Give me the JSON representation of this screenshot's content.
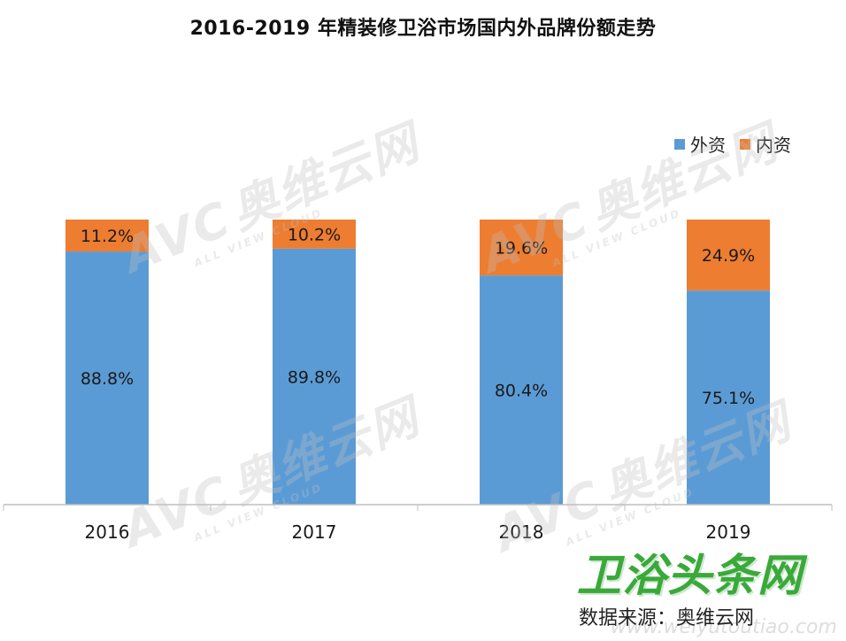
{
  "chart_data": {
    "type": "bar",
    "stacked": true,
    "title": "2016-2019 年精装修卫浴市场国内外品牌份额走势",
    "categories": [
      "2016",
      "2017",
      "2018",
      "2019"
    ],
    "series": [
      {
        "name": "外资",
        "color": "#5b9bd5",
        "values": [
          88.8,
          89.8,
          80.4,
          75.1
        ],
        "labels": [
          "88.8%",
          "89.8%",
          "80.4%",
          "75.1%"
        ]
      },
      {
        "name": "内资",
        "color": "#ed7d31",
        "values": [
          11.2,
          10.2,
          19.6,
          24.9
        ],
        "labels": [
          "11.2%",
          "10.2%",
          "19.6%",
          "24.9%"
        ]
      }
    ],
    "ylim": [
      0,
      100
    ],
    "unit": "%",
    "legend_position": "top-right",
    "grid": false
  },
  "watermark": {
    "logo": "AVC",
    "name": "奥维云网",
    "tagline": "ALL VIEW CLOUD"
  },
  "site_logo": "卫浴头条网",
  "site_url": "www.weiyutoutiao.com",
  "source": "数据来源：奥维云网"
}
